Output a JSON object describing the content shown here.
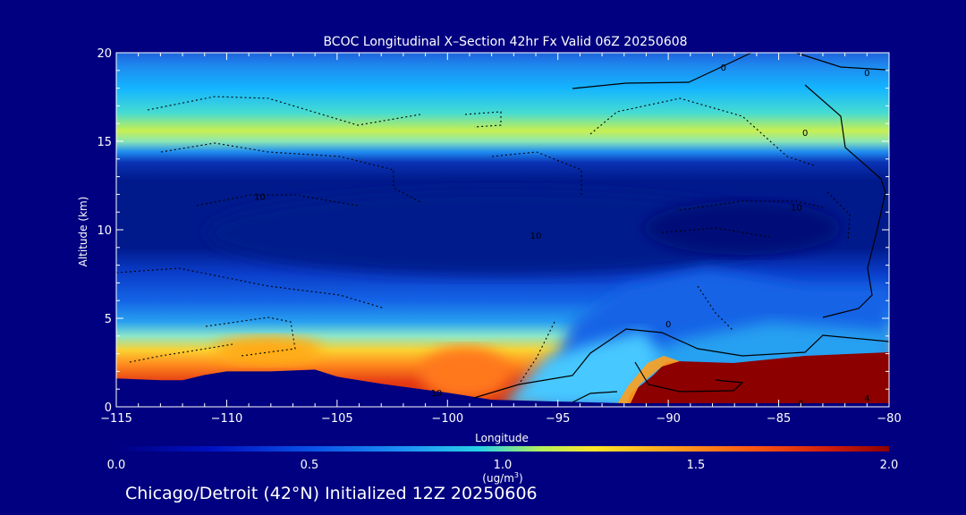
{
  "chart_data": {
    "type": "heatmap",
    "title": "BCOC Longitudinal X–Section 42hr  Fx Valid 06Z 20250608",
    "xlabel": "Longitude",
    "ylabel": "Altitude (km)",
    "xlim": [
      -115,
      -80
    ],
    "ylim": [
      0,
      20
    ],
    "x_ticks": [
      -115,
      -110,
      -105,
      -100,
      -95,
      -90,
      -85,
      -80
    ],
    "x_tick_labels": [
      "−115",
      "−110",
      "−105",
      "−100",
      "−95",
      "−90",
      "−85",
      "−80"
    ],
    "y_ticks": [
      0,
      5,
      10,
      15,
      20
    ],
    "y_tick_labels": [
      "0",
      "5",
      "10",
      "15",
      "20"
    ],
    "colorbar": {
      "min": 0.0,
      "max": 2.0,
      "ticks": [
        0.0,
        0.5,
        1.0,
        1.5,
        2.0
      ],
      "tick_labels": [
        "0.0",
        "0.5",
        "1.0",
        "1.5",
        "2.0"
      ],
      "unit_label": "(ug/m",
      "unit_sup": "3",
      "unit_close": ")"
    },
    "contour_labels": [
      {
        "text": "0",
        "lon": -87.5,
        "alt": 19.2
      },
      {
        "text": "0",
        "lon": -81.0,
        "alt": 18.9
      },
      {
        "text": "0",
        "lon": -83.8,
        "alt": 15.5
      },
      {
        "text": "10",
        "lon": -108.5,
        "alt": 11.9
      },
      {
        "text": "10",
        "lon": -84.2,
        "alt": 11.3
      },
      {
        "text": "10",
        "lon": -96.0,
        "alt": 9.7
      },
      {
        "text": "0",
        "lon": -90.0,
        "alt": 4.7
      },
      {
        "text": "10",
        "lon": -100.5,
        "alt": 0.8
      },
      {
        "text": "4",
        "lon": -81.0,
        "alt": 0.5
      },
      {
        "text": "0",
        "lon": -84.0,
        "alt": 0.2
      }
    ],
    "terrain": [
      {
        "lon": -115,
        "alt": 1.6
      },
      {
        "lon": -113,
        "alt": 1.5
      },
      {
        "lon": -112,
        "alt": 1.5
      },
      {
        "lon": -111,
        "alt": 1.8
      },
      {
        "lon": -110,
        "alt": 2.0
      },
      {
        "lon": -108,
        "alt": 2.0
      },
      {
        "lon": -106,
        "alt": 2.1
      },
      {
        "lon": -105,
        "alt": 1.7
      },
      {
        "lon": -103,
        "alt": 1.3
      },
      {
        "lon": -100,
        "alt": 0.8
      },
      {
        "lon": -98,
        "alt": 0.4
      },
      {
        "lon": -95,
        "alt": 0.3
      },
      {
        "lon": -92,
        "alt": 0.2
      },
      {
        "lon": -90,
        "alt": 0.2
      },
      {
        "lon": -80,
        "alt": 0.2
      }
    ]
  },
  "footer": "Chicago/Detroit (42°N) Initialized 12Z 20250606"
}
